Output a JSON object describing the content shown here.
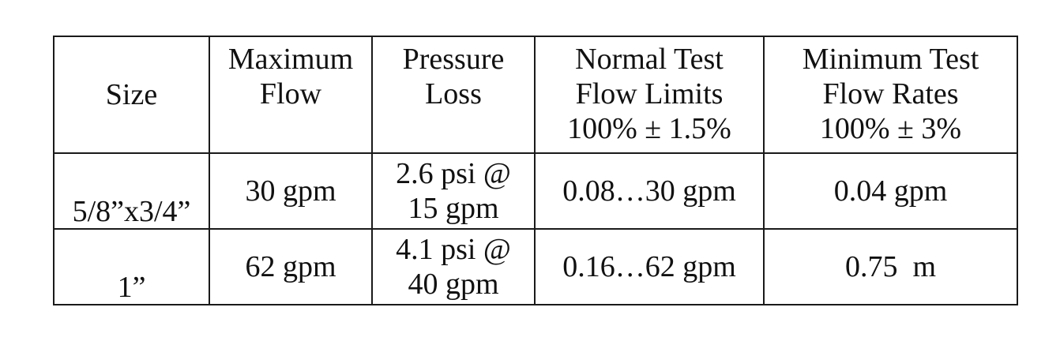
{
  "table": {
    "headers": {
      "size": "Size",
      "max_flow": [
        "Maximum",
        "Flow"
      ],
      "pressure_loss": [
        "Pressure",
        "Loss"
      ],
      "normal_test": [
        "Normal Test",
        "Flow Limits",
        "100% ± 1.5%"
      ],
      "minimum_test": [
        "Minimum Test",
        "Flow Rates",
        "100% ± 3%"
      ]
    },
    "rows": [
      {
        "size": "5/8”x3/4”",
        "max_flow": "30 gpm",
        "pressure_loss": [
          "2.6 psi @",
          "15 gpm"
        ],
        "normal_test": "0.08…30 gpm",
        "minimum_test": "0.04 gpm"
      },
      {
        "size": "1”",
        "max_flow": "62 gpm",
        "pressure_loss": [
          "4.1 psi @",
          "40 gpm"
        ],
        "normal_test": "0.16…62 gpm",
        "minimum_test": "0.75  m"
      }
    ]
  }
}
